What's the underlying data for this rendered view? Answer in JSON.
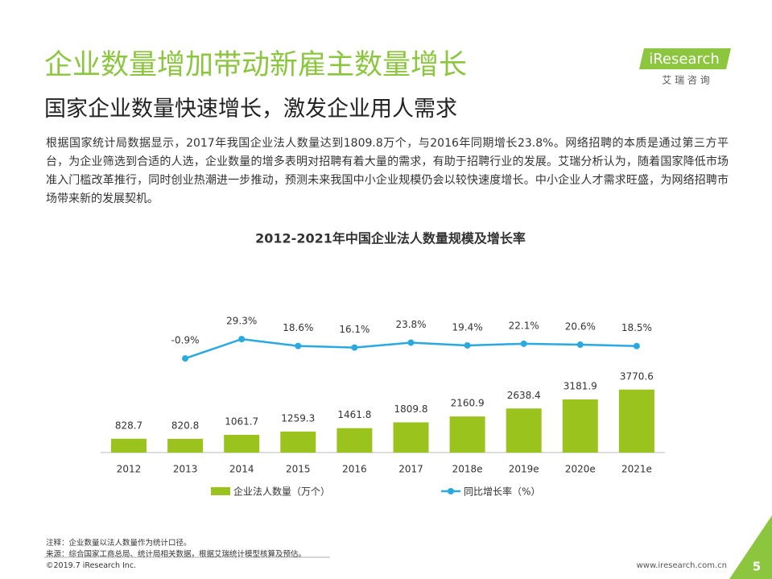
{
  "header": {
    "title": "企业数量增加带动新雇主数量增长",
    "subtitle": "国家企业数量快速增长，激发企业用人需求",
    "paragraph": "根据国家统计局数据显示，2017年我国企业法人数量达到1809.8万个，与2016年同期增长23.8%。网络招聘的本质是通过第三方平台，为企业筛选到合适的人选，企业数量的增多表明对招聘有着大量的需求，有助于招聘行业的发展。艾瑞分析认为，随着国家降低市场准入门槛改革推行，同时创业热潮进一步推动，预测未来我国中小企业规模仍会以较快速度增长。中小企业人才需求旺盛，为网络招聘市场带来新的发展契机。"
  },
  "logo": {
    "brand": "iResearch",
    "name": "艾 瑞 咨 询"
  },
  "chart_data": {
    "type": "bar",
    "title": "2012-2021年中国企业法人数量规模及增长率",
    "categories": [
      "2012",
      "2013",
      "2014",
      "2015",
      "2016",
      "2017",
      "2018e",
      "2019e",
      "2020e",
      "2021e"
    ],
    "series": [
      {
        "name": "企业法人数量（万个）",
        "type": "bar",
        "color": "#9bc31e",
        "values": [
          828.7,
          820.8,
          1061.7,
          1259.3,
          1461.8,
          1809.8,
          2160.9,
          2638.4,
          3181.9,
          3770.6
        ]
      },
      {
        "name": "同比增长率（%）",
        "type": "line",
        "axis": "y2",
        "color": "#2aa8e0",
        "values": [
          null,
          -0.9,
          29.3,
          18.6,
          16.1,
          23.8,
          19.4,
          22.1,
          20.6,
          18.5
        ],
        "value_labels": [
          null,
          "-0.9%",
          "29.3%",
          "18.6%",
          "16.1%",
          "23.8%",
          "19.4%",
          "22.1%",
          "20.6%",
          "18.5%"
        ]
      }
    ],
    "ylim": [
      0,
      4000
    ],
    "y2lim": [
      -60,
      100
    ]
  },
  "notes": [
    "注释：企业数量以法人数量作为统计口径。",
    "来源：综合国家工商总局、统计局相关数据，根据艾瑞统计模型核算及预估。"
  ],
  "footer": {
    "copyright": "©2019.7 iResearch Inc.",
    "website": "www.iresearch.com.cn",
    "page": "5"
  }
}
